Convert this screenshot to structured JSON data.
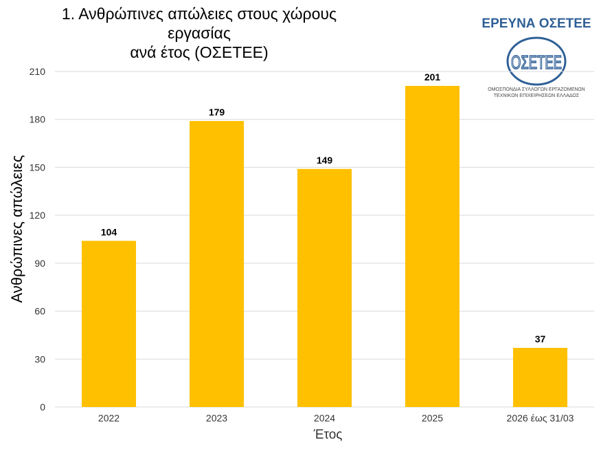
{
  "chart_data": {
    "type": "bar",
    "title": "1. Ανθρώπινες απώλειες στους χώρους εργασίας",
    "subtitle": "ανά έτος (ΟΣΕΤΕΕ)",
    "xlabel": "Έτος",
    "ylabel": "Ανθρώπινες απώλειες",
    "categories": [
      "2022",
      "2023",
      "2024",
      "2025",
      "2026 έως 31/03"
    ],
    "values": [
      104,
      179,
      149,
      201,
      37
    ],
    "ylim": [
      0,
      210
    ],
    "yticks": [
      0,
      30,
      60,
      90,
      120,
      150,
      180,
      210
    ],
    "grid": true,
    "data_labels": true,
    "bar_color": "#FFC000"
  },
  "logo": {
    "heading": "ΕΡΕΥΝΑ ΟΣΕΤΕΕ",
    "emblem": "ΟΣΕΤΕΕ",
    "line1": "ΟΜΟΣΠΟΝΔΙΑ ΣΥΛΛΟΓΩΝ ΕΡΓΑΖΟΜΕΝΩΝ",
    "line2": "ΤΕΧΝΙΚΩΝ ΕΠΙΧΕΙΡΗΣΕΩΝ ΕΛΛΑΔΟΣ",
    "color": "#2e5f96"
  }
}
